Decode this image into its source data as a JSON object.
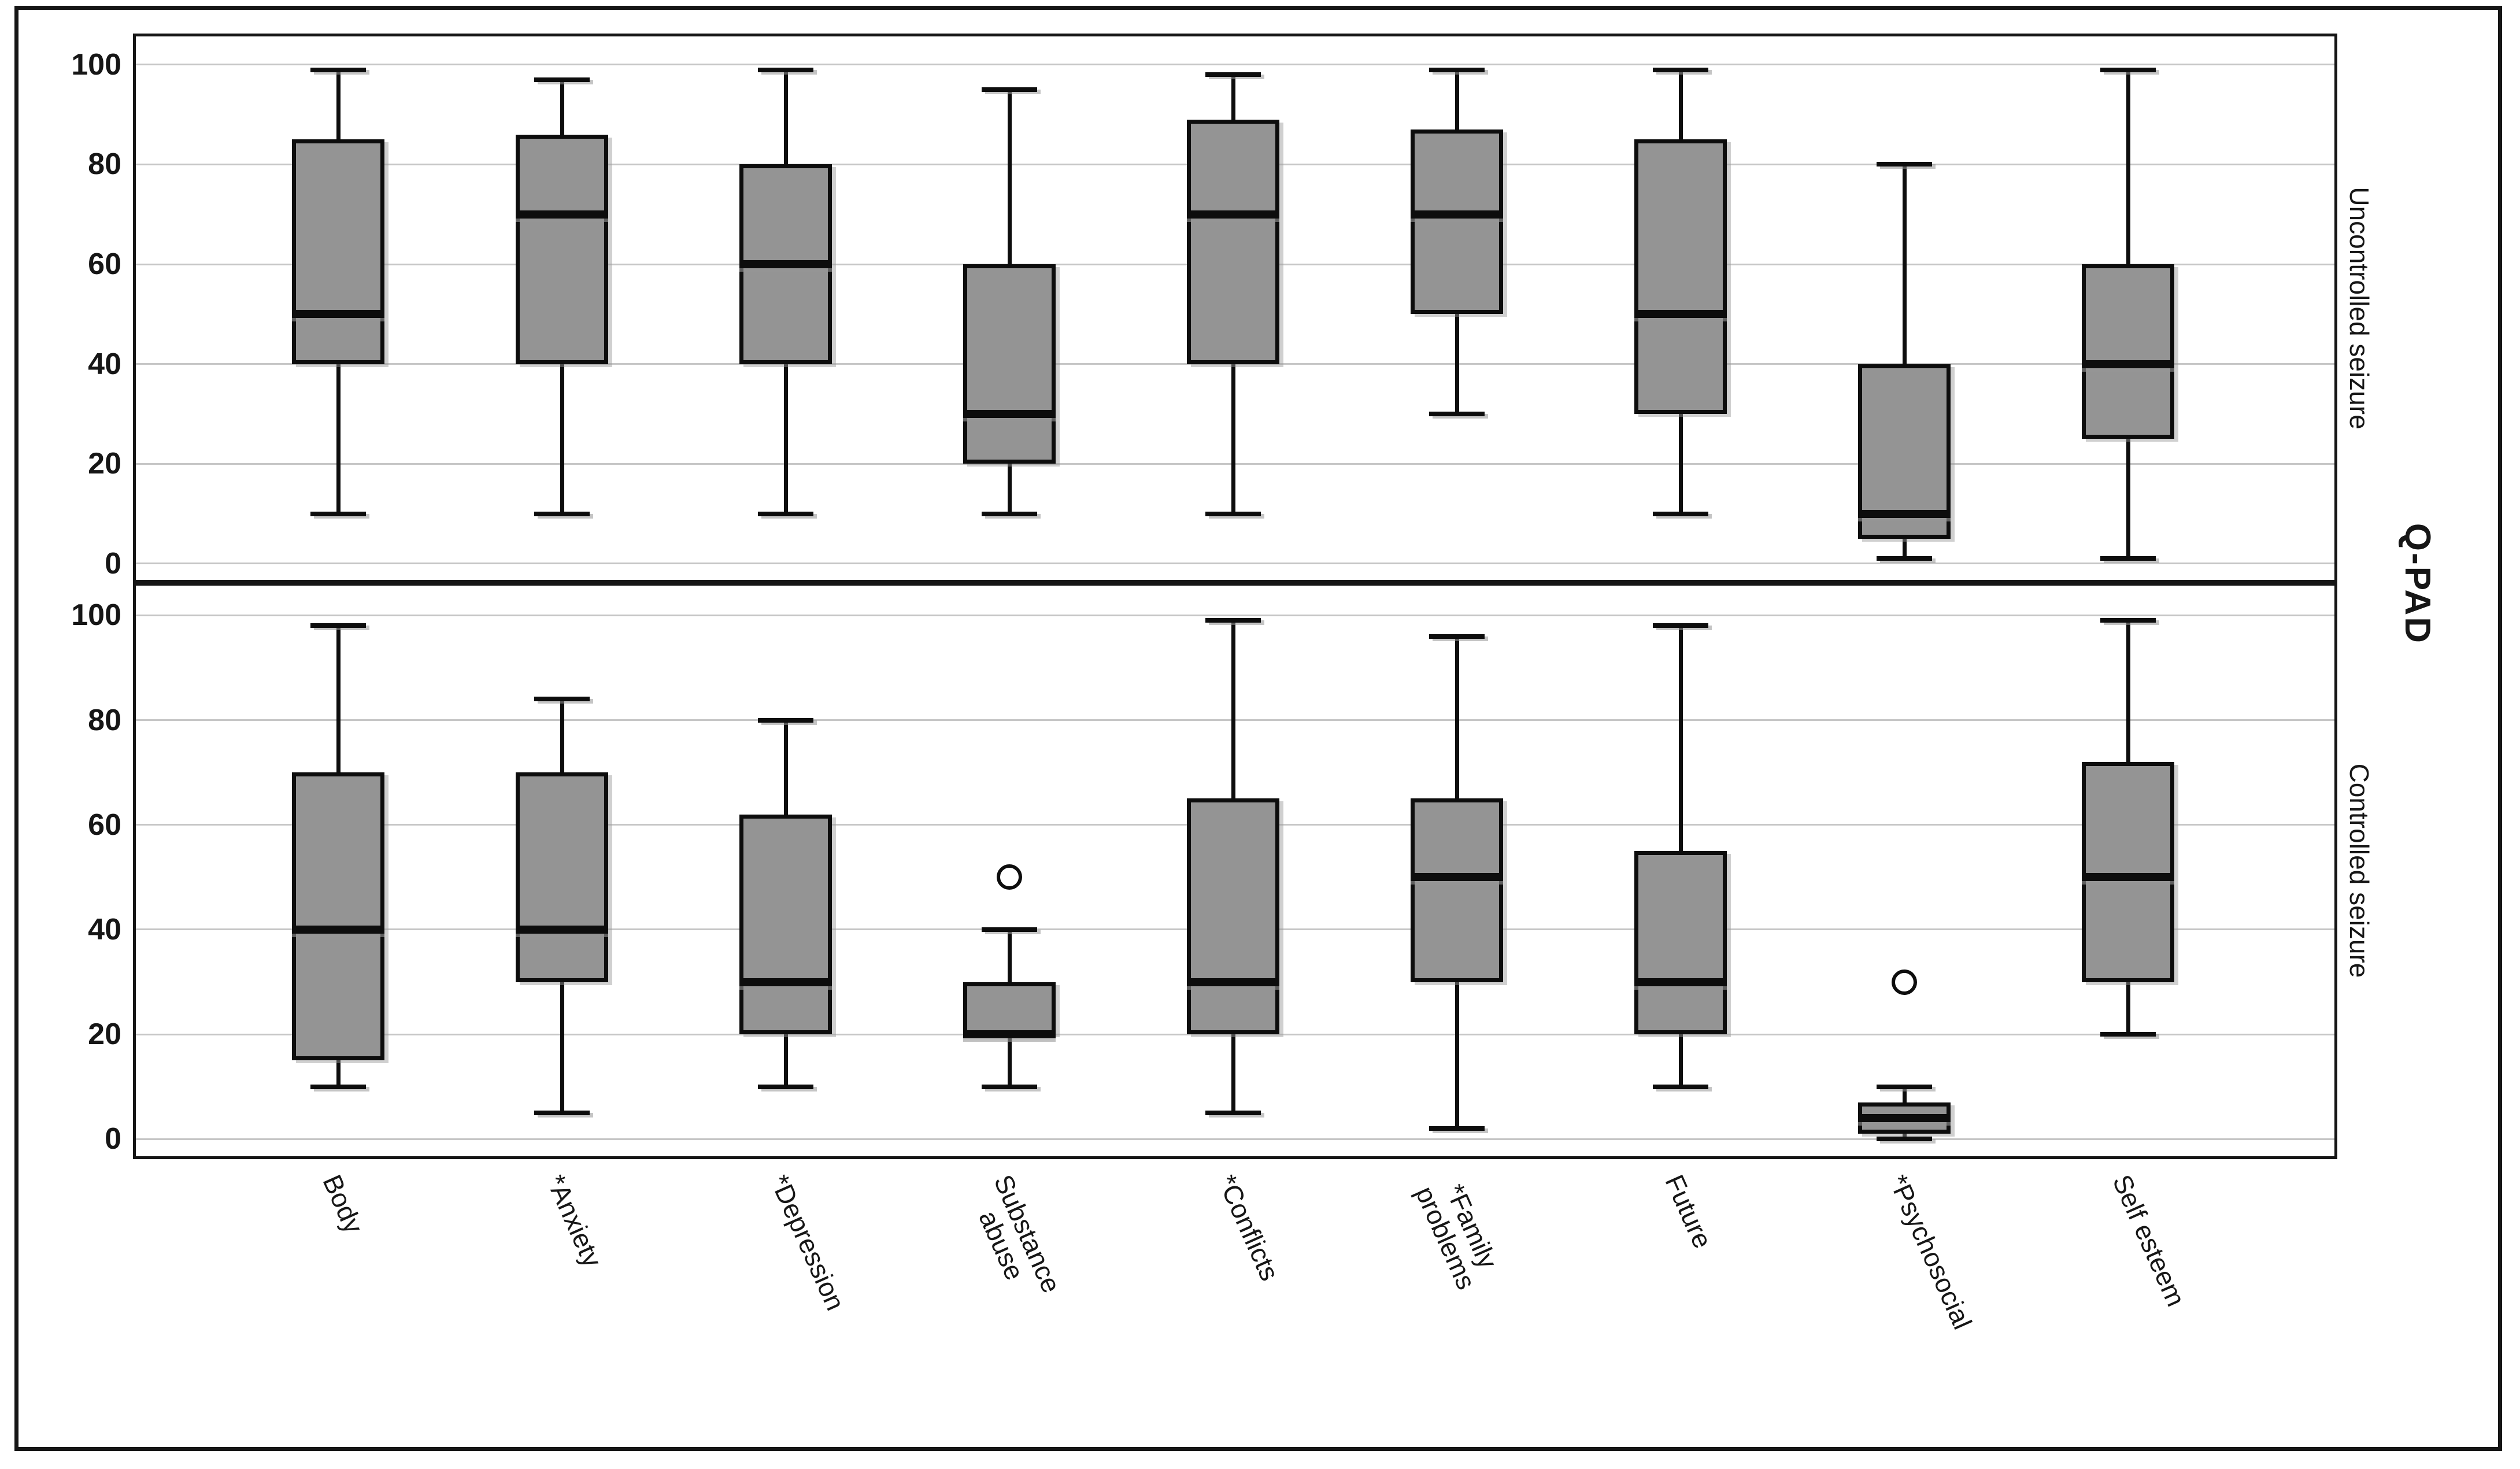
{
  "figure": {
    "axis_title_right": "Q-PAD",
    "background": "#ffffff",
    "box_fill": "#949494",
    "line_color": "#0d0d0d",
    "gridline_color": "#c6c6c6"
  },
  "chart_data": [
    {
      "type": "boxplot",
      "panel_label": "Uncontrolled seizure",
      "ylim": [
        0,
        100
      ],
      "yticks": [
        0,
        20,
        40,
        60,
        80,
        100
      ],
      "grid": true,
      "legend_position": "none",
      "categories": [
        "Body",
        "*Anxiety",
        "*Depression",
        "Substance\nabuse",
        "*Conflicts",
        "*Family\nproblems",
        "Future",
        "*Psychosocial",
        "Self esteem"
      ],
      "series": [
        {
          "category": "Body",
          "whisker_low": 10,
          "q1": 40,
          "median": 50,
          "q3": 85,
          "whisker_high": 99,
          "outliers": []
        },
        {
          "category": "*Anxiety",
          "whisker_low": 10,
          "q1": 40,
          "median": 70,
          "q3": 86,
          "whisker_high": 97,
          "outliers": []
        },
        {
          "category": "*Depression",
          "whisker_low": 10,
          "q1": 40,
          "median": 60,
          "q3": 80,
          "whisker_high": 99,
          "outliers": []
        },
        {
          "category": "Substance\nabuse",
          "whisker_low": 10,
          "q1": 20,
          "median": 30,
          "q3": 60,
          "whisker_high": 95,
          "outliers": []
        },
        {
          "category": "*Conflicts",
          "whisker_low": 10,
          "q1": 40,
          "median": 70,
          "q3": 89,
          "whisker_high": 98,
          "outliers": []
        },
        {
          "category": "*Family\nproblems",
          "whisker_low": 30,
          "q1": 50,
          "median": 70,
          "q3": 87,
          "whisker_high": 99,
          "outliers": []
        },
        {
          "category": "Future",
          "whisker_low": 10,
          "q1": 30,
          "median": 50,
          "q3": 85,
          "whisker_high": 99,
          "outliers": []
        },
        {
          "category": "*Psychosocial",
          "whisker_low": 1,
          "q1": 5,
          "median": 10,
          "q3": 40,
          "whisker_high": 80,
          "outliers": []
        },
        {
          "category": "Self esteem",
          "whisker_low": 1,
          "q1": 25,
          "median": 40,
          "q3": 60,
          "whisker_high": 99,
          "outliers": []
        }
      ]
    },
    {
      "type": "boxplot",
      "panel_label": "Controlled seizure",
      "ylim": [
        0,
        100
      ],
      "yticks": [
        0,
        20,
        40,
        60,
        80,
        100
      ],
      "grid": true,
      "legend_position": "none",
      "categories": [
        "Body",
        "*Anxiety",
        "*Depression",
        "Substance\nabuse",
        "*Conflicts",
        "*Family\nproblems",
        "Future",
        "*Psychosocial",
        "Self esteem"
      ],
      "series": [
        {
          "category": "Body",
          "whisker_low": 10,
          "q1": 15,
          "median": 40,
          "q3": 70,
          "whisker_high": 98,
          "outliers": []
        },
        {
          "category": "*Anxiety",
          "whisker_low": 5,
          "q1": 30,
          "median": 40,
          "q3": 70,
          "whisker_high": 84,
          "outliers": []
        },
        {
          "category": "*Depression",
          "whisker_low": 10,
          "q1": 20,
          "median": 30,
          "q3": 62,
          "whisker_high": 80,
          "outliers": []
        },
        {
          "category": "Substance\nabuse",
          "whisker_low": 10,
          "q1": 20,
          "median": 20,
          "q3": 30,
          "whisker_high": 40,
          "outliers": [
            50
          ]
        },
        {
          "category": "*Conflicts",
          "whisker_low": 5,
          "q1": 20,
          "median": 30,
          "q3": 65,
          "whisker_high": 99,
          "outliers": []
        },
        {
          "category": "*Family\nproblems",
          "whisker_low": 2,
          "q1": 30,
          "median": 50,
          "q3": 65,
          "whisker_high": 96,
          "outliers": []
        },
        {
          "category": "Future",
          "whisker_low": 10,
          "q1": 20,
          "median": 30,
          "q3": 55,
          "whisker_high": 98,
          "outliers": []
        },
        {
          "category": "*Psychosocial",
          "whisker_low": 0,
          "q1": 1,
          "median": 4,
          "q3": 7,
          "whisker_high": 10,
          "outliers": [
            30
          ]
        },
        {
          "category": "Self esteem",
          "whisker_low": 20,
          "q1": 30,
          "median": 50,
          "q3": 72,
          "whisker_high": 99,
          "outliers": []
        }
      ]
    }
  ]
}
